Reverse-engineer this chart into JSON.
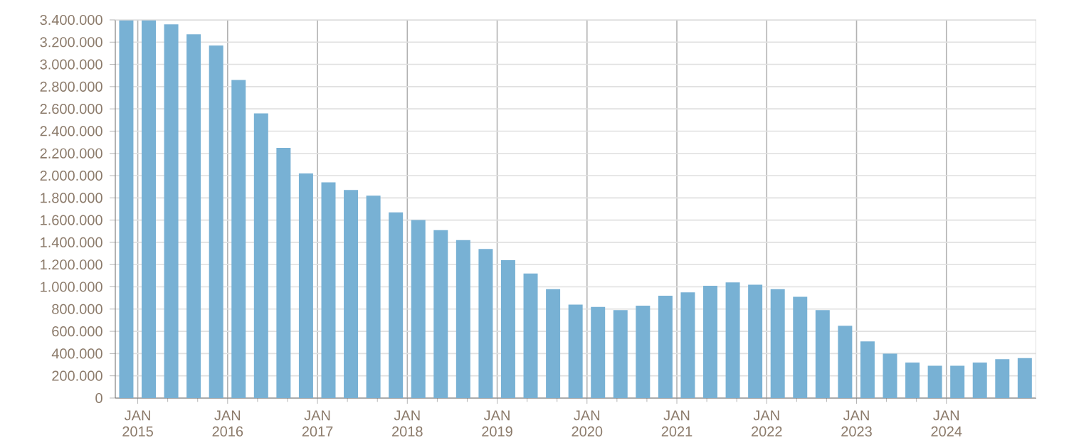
{
  "chart_data": {
    "type": "bar",
    "color": "#78b1d4",
    "grid": true,
    "x": [
      "2014-11-15",
      "2015-02-15",
      "2015-05-15",
      "2015-08-15",
      "2015-11-15",
      "2016-02-15",
      "2016-05-15",
      "2016-08-15",
      "2016-11-15",
      "2017-02-15",
      "2017-05-15",
      "2017-08-15",
      "2017-11-15",
      "2018-02-15",
      "2018-05-15",
      "2018-08-15",
      "2018-11-15",
      "2019-02-15",
      "2019-05-15",
      "2019-08-15",
      "2019-11-15",
      "2020-02-15",
      "2020-05-15",
      "2020-08-15",
      "2020-11-15",
      "2021-02-15",
      "2021-05-15",
      "2021-08-15",
      "2021-11-15",
      "2022-02-15",
      "2022-05-15",
      "2022-08-15",
      "2022-11-15",
      "2023-02-15",
      "2023-05-15",
      "2023-08-15",
      "2023-11-15",
      "2024-02-15",
      "2024-05-15",
      "2024-08-15",
      "2024-11-15"
    ],
    "values": [
      3400000,
      3400000,
      3360000,
      3270000,
      3170000,
      2860000,
      2560000,
      2250000,
      2020000,
      1940000,
      1870000,
      1820000,
      1670000,
      1600000,
      1510000,
      1420000,
      1340000,
      1240000,
      1120000,
      980000,
      840000,
      820000,
      790000,
      830000,
      920000,
      950000,
      1010000,
      1040000,
      1020000,
      980000,
      910000,
      790000,
      650000,
      510000,
      400000,
      320000,
      290000,
      290000,
      320000,
      350000,
      360000
    ],
    "xlim": [
      "2014-10",
      "2025-01"
    ],
    "xticks": [
      {
        "value": "2015-01",
        "label": "JAN 2015"
      },
      {
        "value": "2016-01",
        "label": "JAN 2016"
      },
      {
        "value": "2017-01",
        "label": "JAN 2017"
      },
      {
        "value": "2018-01",
        "label": "JAN 2018"
      },
      {
        "value": "2019-01",
        "label": "JAN 2019"
      },
      {
        "value": "2020-01",
        "label": "JAN 2020"
      },
      {
        "value": "2021-01",
        "label": "JAN 2021"
      },
      {
        "value": "2022-01",
        "label": "JAN 2022"
      },
      {
        "value": "2023-01",
        "label": "JAN 2023"
      },
      {
        "value": "2024-01",
        "label": "JAN 2024"
      }
    ],
    "ylim": [
      0,
      3400000
    ],
    "yticks": [
      {
        "value": 0,
        "label": "0"
      },
      {
        "value": 200000,
        "label": "200.000"
      },
      {
        "value": 400000,
        "label": "400.000"
      },
      {
        "value": 600000,
        "label": "600.000"
      },
      {
        "value": 800000,
        "label": "800.000"
      },
      {
        "value": 1000000,
        "label": "1.000.000"
      },
      {
        "value": 1200000,
        "label": "1.200.000"
      },
      {
        "value": 1400000,
        "label": "1.400.000"
      },
      {
        "value": 1600000,
        "label": "1.600.000"
      },
      {
        "value": 1800000,
        "label": "1.800.000"
      },
      {
        "value": 2000000,
        "label": "2.000.000"
      },
      {
        "value": 2200000,
        "label": "2.200.000"
      },
      {
        "value": 2400000,
        "label": "2.400.000"
      },
      {
        "value": 2600000,
        "label": "2.600.000"
      },
      {
        "value": 2800000,
        "label": "2.800.000"
      },
      {
        "value": 3000000,
        "label": "3.000.000"
      },
      {
        "value": 3200000,
        "label": "3.200.000"
      },
      {
        "value": 3400000,
        "label": "3.400.000"
      }
    ]
  }
}
